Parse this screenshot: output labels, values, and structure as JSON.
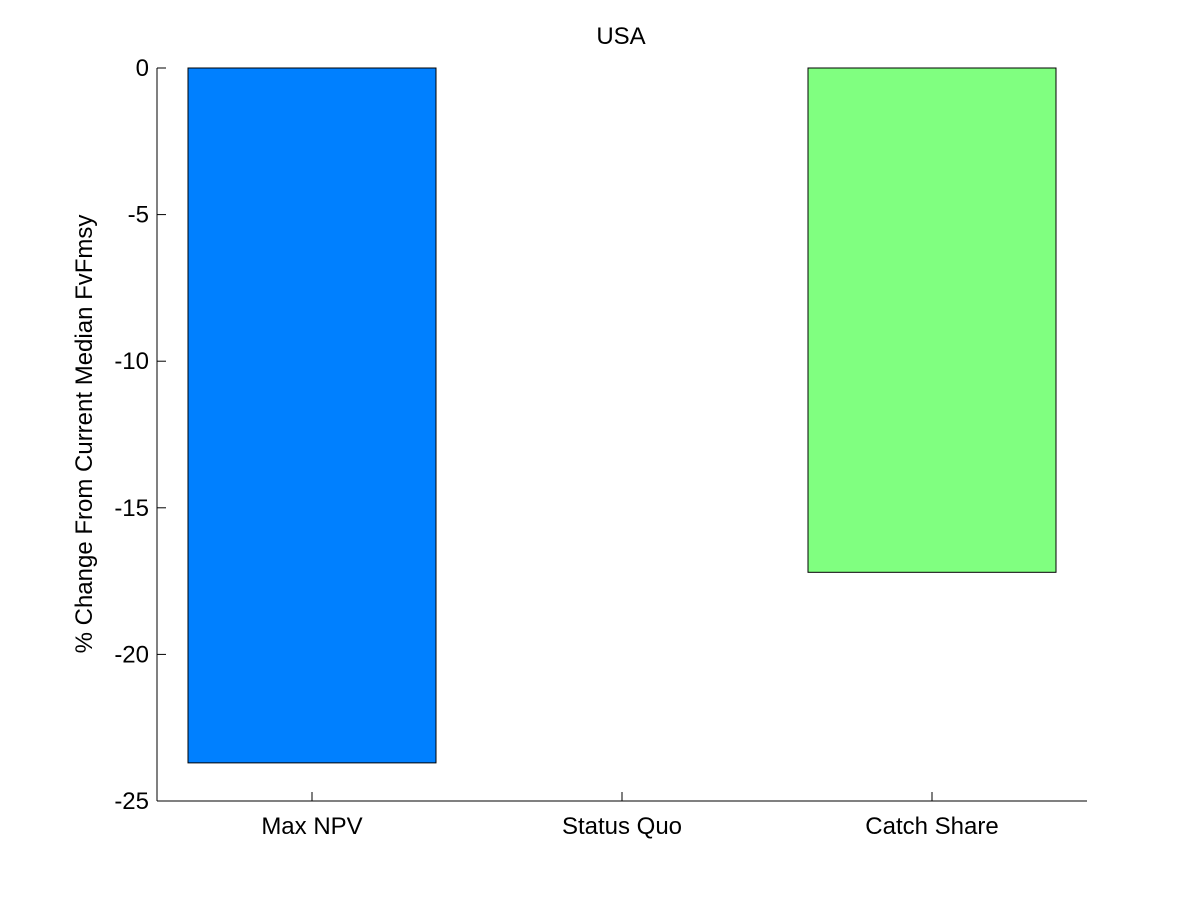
{
  "chart_data": {
    "type": "bar",
    "title": "USA",
    "xlabel": "",
    "ylabel": "% Change From Current Median FvFmsy",
    "categories": [
      "Max NPV",
      "Status Quo",
      "Catch Share"
    ],
    "values": [
      -23.7,
      0,
      -17.2
    ],
    "colors": [
      "#0080ff",
      "#ffffff",
      "#80ff80"
    ],
    "ylim": [
      -25,
      0
    ],
    "yticks": [
      "0",
      "-5",
      "-10",
      "-15",
      "-20",
      "-25"
    ],
    "ytick_values": [
      0,
      -5,
      -10,
      -15,
      -20,
      -25
    ],
    "grid": false,
    "legend": "none"
  }
}
